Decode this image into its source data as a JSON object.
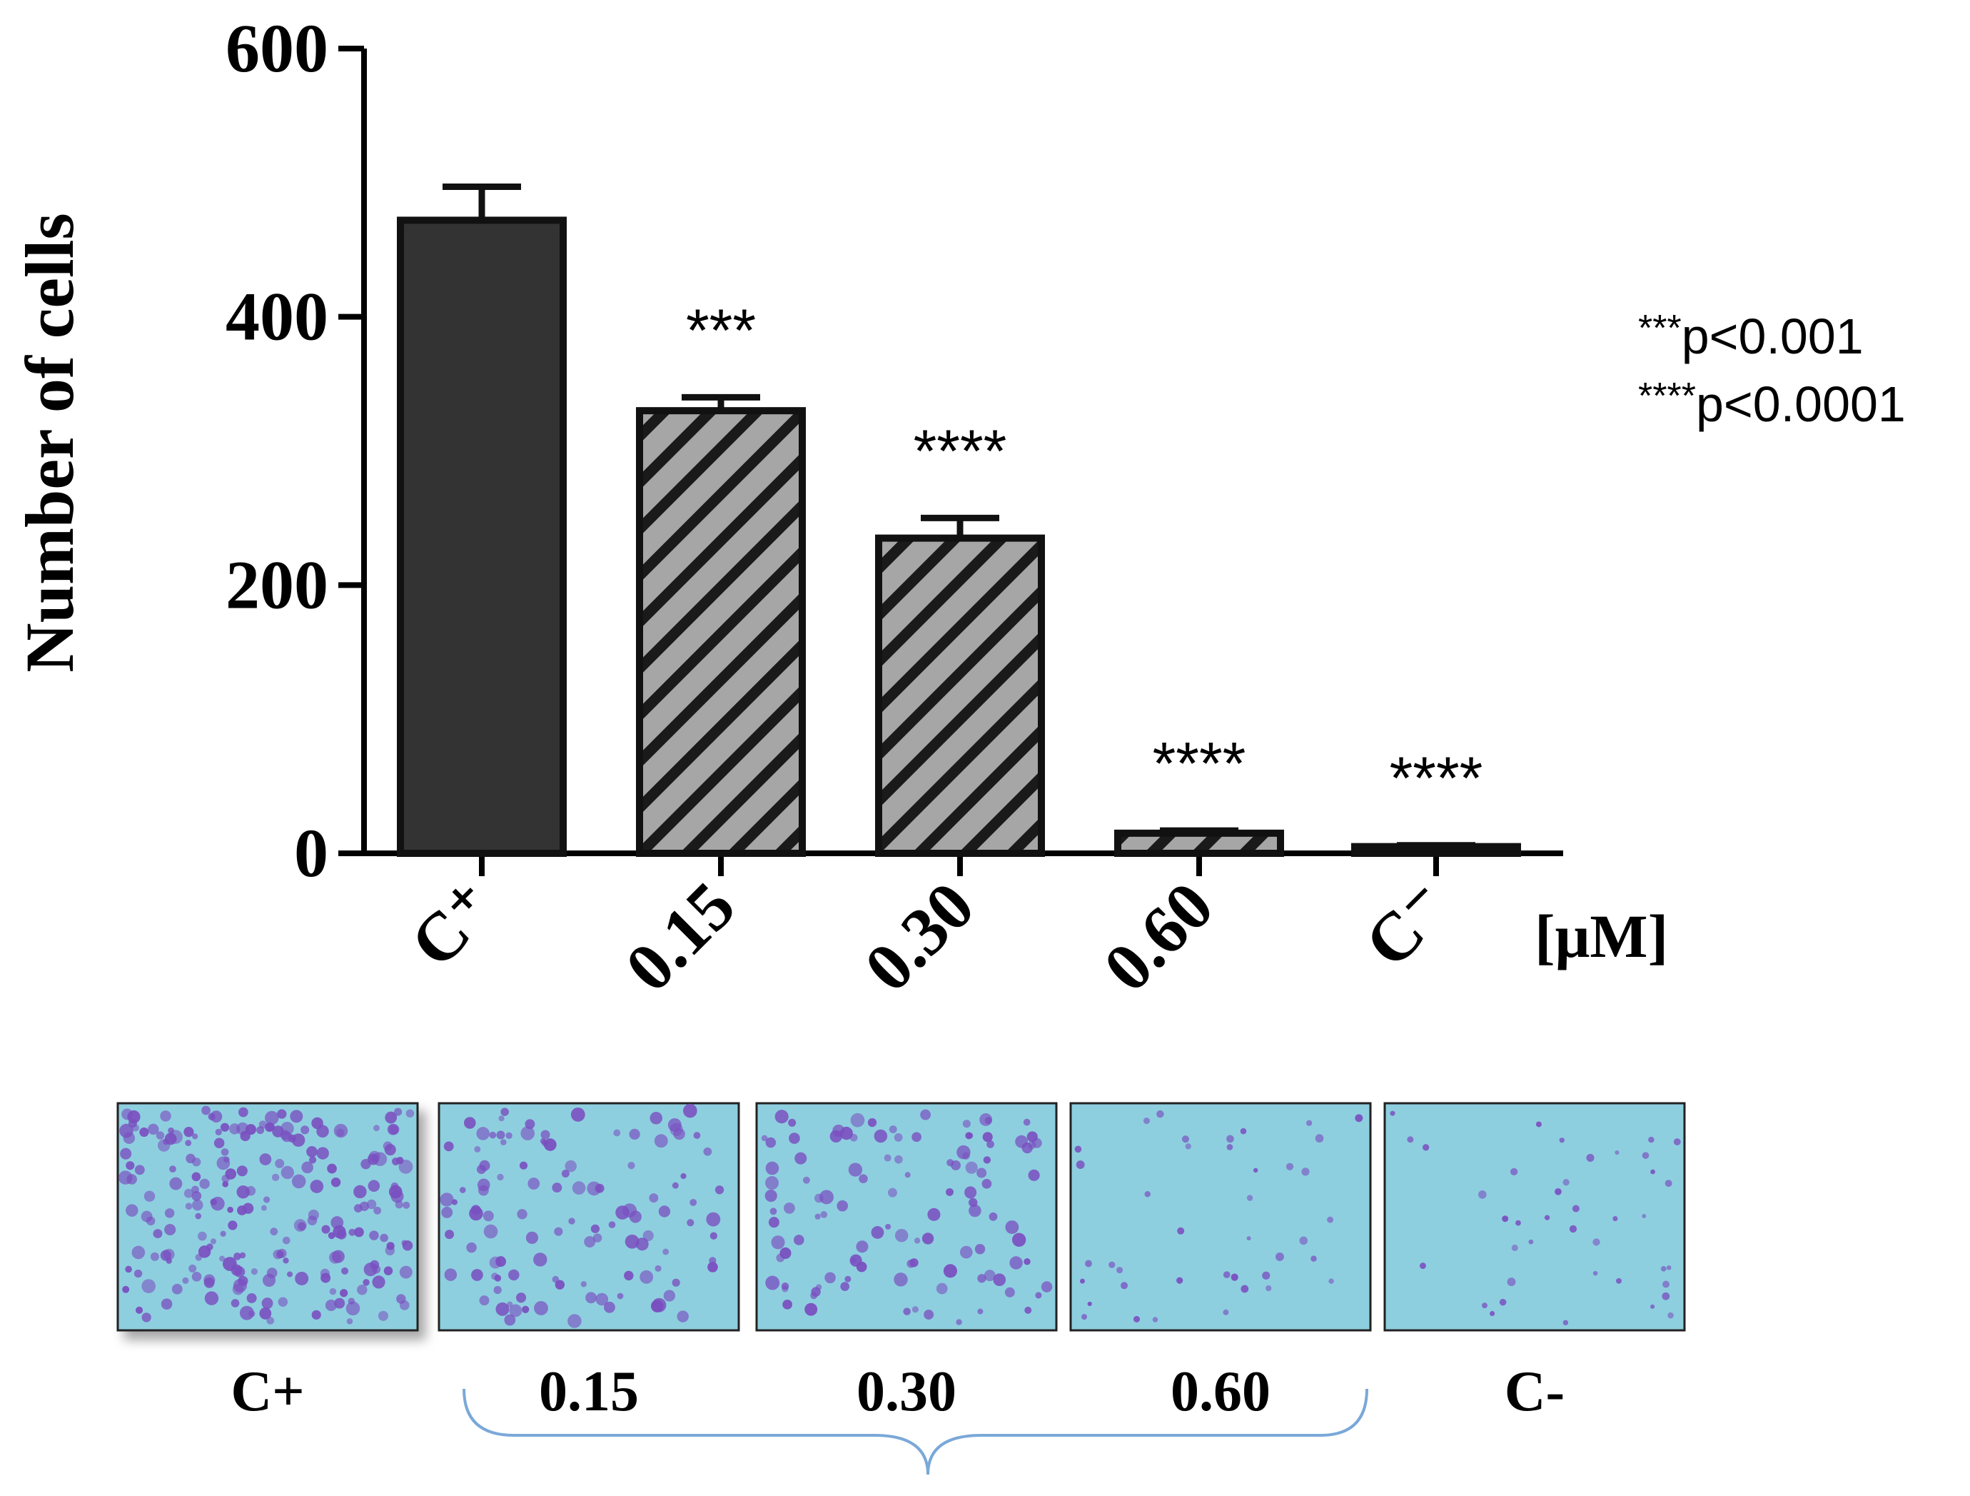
{
  "chart_data": {
    "type": "bar",
    "ylabel": "Number of cells",
    "ylim": [
      0,
      600
    ],
    "yticks": [
      "0",
      "200",
      "400",
      "600"
    ],
    "xunit": "[μM]",
    "categories": [
      "C⁺",
      "0.15",
      "0.30",
      "0.60",
      "C⁻"
    ],
    "values": [
      472,
      330,
      235,
      15,
      5
    ],
    "errors": [
      25,
      10,
      15,
      2,
      1
    ],
    "significance": [
      "",
      "***",
      "****",
      "****",
      "****"
    ],
    "fills": [
      "solid",
      "hatched",
      "hatched",
      "hatched",
      "hatched"
    ],
    "colors": {
      "solid": "#333333",
      "hatch_bg": "#a6a6a6",
      "hatch_line": "#1a1a1a",
      "axis": "#000000"
    },
    "legend": {
      "line1_stars": "***",
      "line1_text": "p<0.001",
      "line2_stars": "****",
      "line2_text": "p<0.0001"
    }
  },
  "micrographs": {
    "panels": [
      {
        "label": "C+",
        "density": "high"
      },
      {
        "label": "0.15",
        "density": "medium"
      },
      {
        "label": "0.30",
        "density": "medium"
      },
      {
        "label": "0.60",
        "density": "low"
      },
      {
        "label": "C-",
        "density": "low"
      }
    ],
    "background_color": "#8ecfdf",
    "cell_color": "#7a4fc0",
    "bracket_color": "#7aa8d8"
  }
}
